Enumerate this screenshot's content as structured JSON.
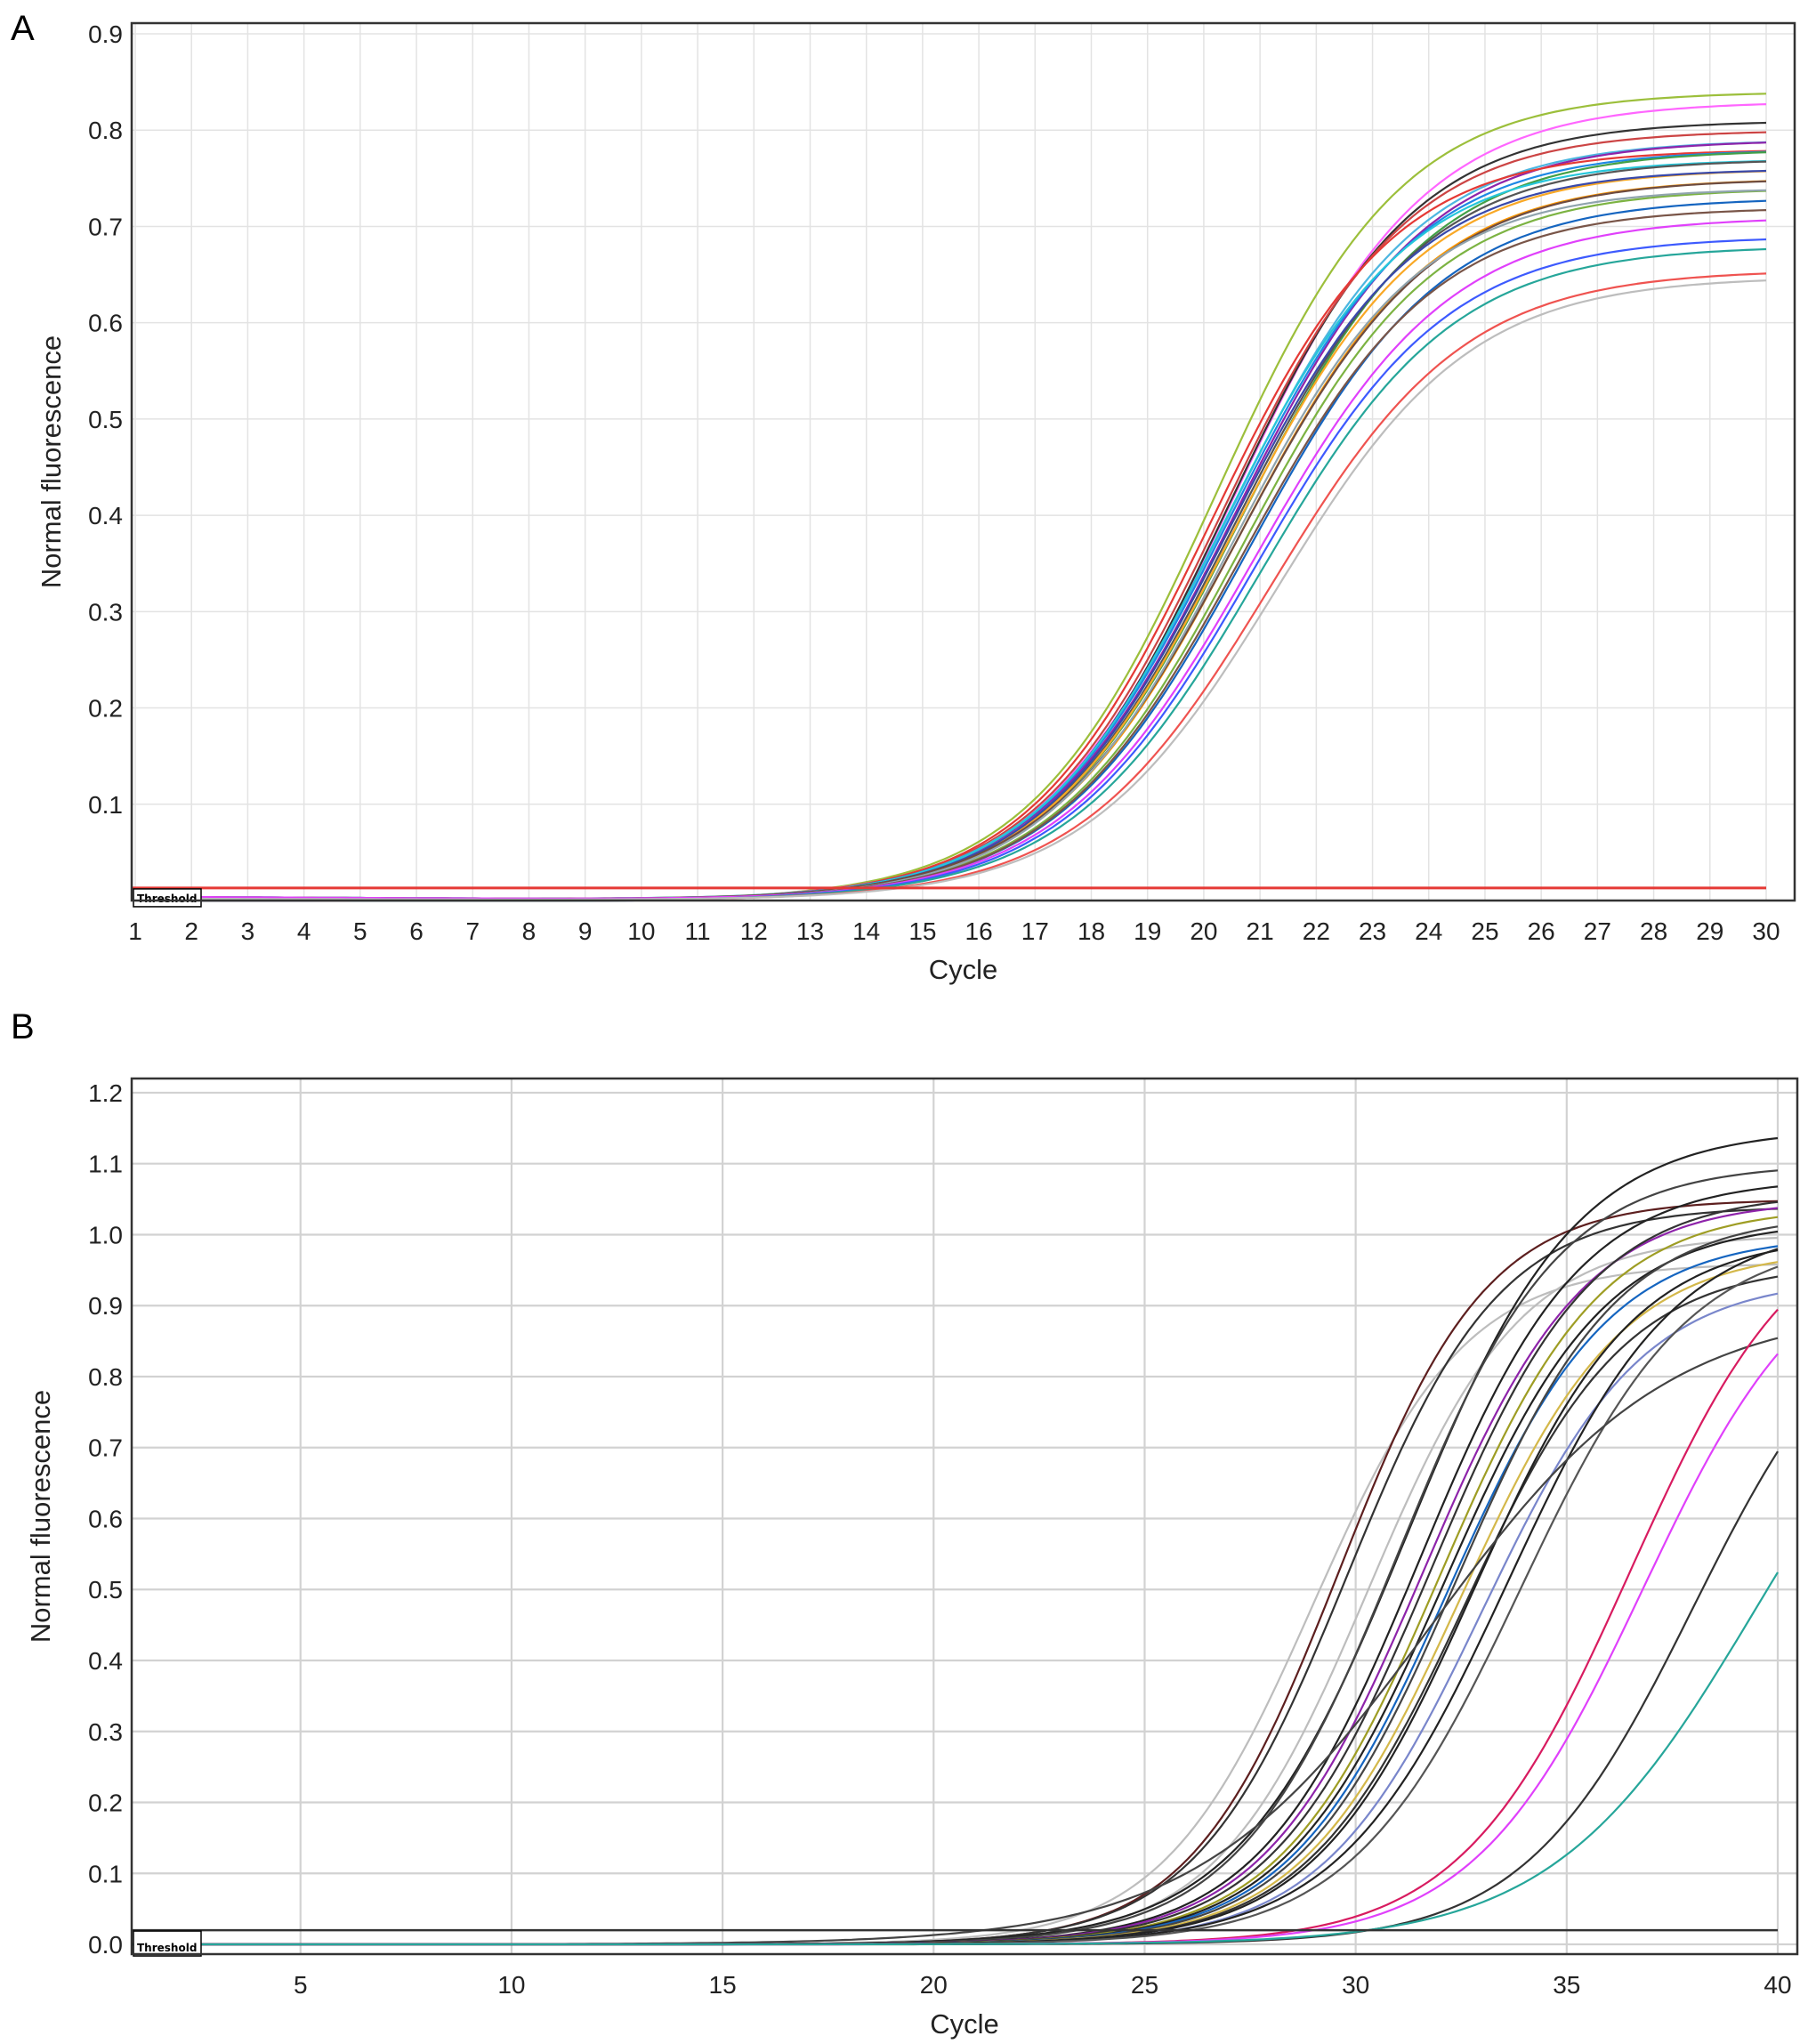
{
  "chart_data": [
    {
      "panel": "A",
      "type": "line",
      "xlabel": "Cycle",
      "ylabel": "Normal fluorescence",
      "xlim": [
        1,
        30
      ],
      "ylim": [
        0,
        0.9
      ],
      "x_ticks": [
        "1",
        "2",
        "3",
        "4",
        "5",
        "6",
        "7",
        "8",
        "9",
        "10",
        "11",
        "12",
        "13",
        "14",
        "15",
        "16",
        "17",
        "18",
        "19",
        "20",
        "21",
        "22",
        "23",
        "24",
        "25",
        "26",
        "27",
        "28",
        "29",
        "30"
      ],
      "y_ticks": [
        "0.1",
        "0.2",
        "0.3",
        "0.4",
        "0.5",
        "0.6",
        "0.7",
        "0.8",
        "0.9"
      ],
      "grid": true,
      "threshold": {
        "label": "Threshold",
        "value": 0.013,
        "color": "#e53935"
      },
      "series_count": 24,
      "curve_model": "logistic plateau/(1+exp(-(cycle-midpoint)/slope))",
      "series_params": [
        {
          "plateau": 0.84,
          "midpoint": 20.2,
          "slope": 1.65,
          "color": "#9cbf3b"
        },
        {
          "plateau": 0.83,
          "midpoint": 20.5,
          "slope": 1.7,
          "color": "#ff66ff"
        },
        {
          "plateau": 0.81,
          "midpoint": 20.4,
          "slope": 1.65,
          "color": "#333333"
        },
        {
          "plateau": 0.8,
          "midpoint": 20.3,
          "slope": 1.65,
          "color": "#cc4444"
        },
        {
          "plateau": 0.79,
          "midpoint": 20.4,
          "slope": 1.68,
          "color": "#4db6e0"
        },
        {
          "plateau": 0.79,
          "midpoint": 20.5,
          "slope": 1.7,
          "color": "#8e24aa"
        },
        {
          "plateau": 0.78,
          "midpoint": 20.1,
          "slope": 1.62,
          "color": "#e53935"
        },
        {
          "plateau": 0.78,
          "midpoint": 20.4,
          "slope": 1.68,
          "color": "#1e88e5"
        },
        {
          "plateau": 0.78,
          "midpoint": 20.6,
          "slope": 1.7,
          "color": "#43a047"
        },
        {
          "plateau": 0.77,
          "midpoint": 20.3,
          "slope": 1.65,
          "color": "#26c6da"
        },
        {
          "plateau": 0.77,
          "midpoint": 20.5,
          "slope": 1.68,
          "color": "#555555"
        },
        {
          "plateau": 0.76,
          "midpoint": 20.5,
          "slope": 1.68,
          "color": "#f9a825"
        },
        {
          "plateau": 0.76,
          "midpoint": 20.4,
          "slope": 1.66,
          "color": "#3949ab"
        },
        {
          "plateau": 0.75,
          "midpoint": 20.6,
          "slope": 1.7,
          "color": "#ff9800"
        },
        {
          "plateau": 0.75,
          "midpoint": 20.6,
          "slope": 1.72,
          "color": "#6d4c41"
        },
        {
          "plateau": 0.74,
          "midpoint": 20.7,
          "slope": 1.7,
          "color": "#7cb342"
        },
        {
          "plateau": 0.74,
          "midpoint": 20.5,
          "slope": 1.66,
          "color": "#90a4ae"
        },
        {
          "plateau": 0.73,
          "midpoint": 20.8,
          "slope": 1.72,
          "color": "#1565c0"
        },
        {
          "plateau": 0.72,
          "midpoint": 20.7,
          "slope": 1.7,
          "color": "#795548"
        },
        {
          "plateau": 0.71,
          "midpoint": 20.9,
          "slope": 1.74,
          "color": "#e040fb"
        },
        {
          "plateau": 0.69,
          "midpoint": 20.9,
          "slope": 1.72,
          "color": "#3d5afe"
        },
        {
          "plateau": 0.68,
          "midpoint": 21.0,
          "slope": 1.72,
          "color": "#26a69a"
        },
        {
          "plateau": 0.655,
          "midpoint": 21.2,
          "slope": 1.72,
          "color": "#ef5350"
        },
        {
          "plateau": 0.648,
          "midpoint": 21.3,
          "slope": 1.72,
          "color": "#bdbdbd"
        }
      ]
    },
    {
      "panel": "B",
      "type": "line",
      "xlabel": "Cycle",
      "ylabel": "Normal fluorescence",
      "xlim": [
        1,
        40
      ],
      "ylim": [
        -0.01,
        1.22
      ],
      "x_ticks": [
        "5",
        "10",
        "15",
        "20",
        "25",
        "30",
        "35",
        "40"
      ],
      "y_ticks": [
        "0.0",
        "0.1",
        "0.2",
        "0.3",
        "0.4",
        "0.5",
        "0.6",
        "0.7",
        "0.8",
        "0.9",
        "1.0",
        "1.1",
        "1.2"
      ],
      "grid": true,
      "threshold": {
        "label": "Threshold",
        "value": 0.02,
        "color": "#333333"
      },
      "series_count": 24,
      "curve_model": "logistic plateau/(1+exp(-(cycle-midpoint)/slope))",
      "series_params": [
        {
          "plateau": 0.96,
          "midpoint": 29.0,
          "slope": 1.8,
          "color": "#bdbdbd"
        },
        {
          "plateau": 1.05,
          "midpoint": 29.6,
          "slope": 1.75,
          "color": "#5d1f1f"
        },
        {
          "plateau": 1.04,
          "midpoint": 29.8,
          "slope": 1.8,
          "color": "#333333"
        },
        {
          "plateau": 1.0,
          "midpoint": 30.3,
          "slope": 1.8,
          "color": "#bdbdbd"
        },
        {
          "plateau": 1.15,
          "midpoint": 31.2,
          "slope": 2.0,
          "color": "#222222"
        },
        {
          "plateau": 1.1,
          "midpoint": 31.0,
          "slope": 1.9,
          "color": "#444444"
        },
        {
          "plateau": 1.08,
          "midpoint": 31.5,
          "slope": 1.9,
          "color": "#222222"
        },
        {
          "plateau": 1.05,
          "midpoint": 31.6,
          "slope": 1.9,
          "color": "#8e24aa"
        },
        {
          "plateau": 1.06,
          "midpoint": 31.8,
          "slope": 1.9,
          "color": "#333333"
        },
        {
          "plateau": 1.04,
          "midpoint": 32.0,
          "slope": 1.9,
          "color": "#9e9d24"
        },
        {
          "plateau": 1.02,
          "midpoint": 32.1,
          "slope": 1.9,
          "color": "#222222"
        },
        {
          "plateau": 1.0,
          "midpoint": 32.2,
          "slope": 1.9,
          "color": "#1565c0"
        },
        {
          "plateau": 1.03,
          "midpoint": 32.4,
          "slope": 1.9,
          "color": "#444444"
        },
        {
          "plateau": 0.98,
          "midpoint": 32.5,
          "slope": 1.9,
          "color": "#d4b84a"
        },
        {
          "plateau": 0.96,
          "midpoint": 32.6,
          "slope": 1.9,
          "color": "#333333"
        },
        {
          "plateau": 1.0,
          "midpoint": 32.8,
          "slope": 1.9,
          "color": "#222222"
        },
        {
          "plateau": 0.94,
          "midpoint": 33.0,
          "slope": 1.9,
          "color": "#7986cb"
        },
        {
          "plateau": 1.02,
          "midpoint": 33.6,
          "slope": 2.0,
          "color": "#222222"
        },
        {
          "plateau": 1.0,
          "midpoint": 33.9,
          "slope": 2.0,
          "color": "#555555"
        },
        {
          "plateau": 0.9,
          "midpoint": 31.8,
          "slope": 2.8,
          "color": "#444444"
        },
        {
          "plateau": 1.05,
          "midpoint": 36.5,
          "slope": 2.0,
          "color": "#d81b60"
        },
        {
          "plateau": 1.0,
          "midpoint": 36.8,
          "slope": 2.0,
          "color": "#e040fb"
        },
        {
          "plateau": 0.95,
          "midpoint": 38.0,
          "slope": 2.0,
          "color": "#333333"
        },
        {
          "plateau": 0.95,
          "midpoint": 39.5,
          "slope": 2.4,
          "color": "#26a69a"
        }
      ]
    }
  ],
  "panels": {
    "a": {
      "letter": "A",
      "threshold_label": "Threshold",
      "xlabel": "Cycle",
      "ylabel": "Normal fluorescence"
    },
    "b": {
      "letter": "B",
      "threshold_label": "Threshold",
      "xlabel": "Cycle",
      "ylabel": "Normal fluorescence"
    }
  }
}
